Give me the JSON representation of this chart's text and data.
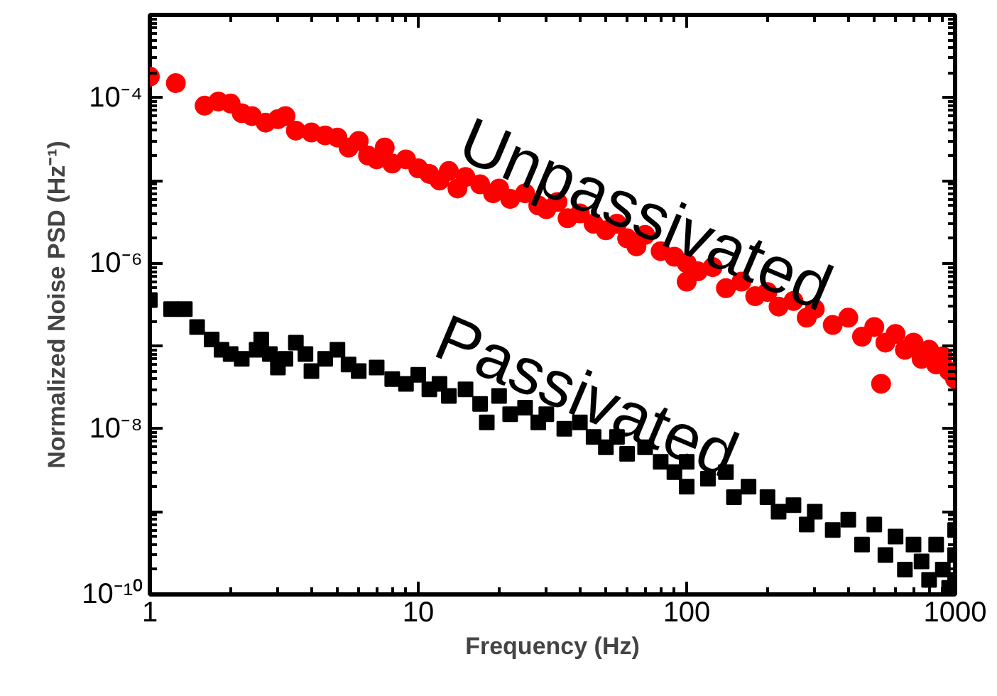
{
  "chart_data": {
    "type": "scatter",
    "xlabel": "Frequency (Hz)",
    "ylabel": "Normalized Noise PSD (Hz⁻¹)",
    "log": "xy",
    "grid": false,
    "xlim": [
      1,
      1000
    ],
    "ylim": [
      1e-10,
      0.001
    ],
    "xticks": [
      1,
      10,
      100,
      1000
    ],
    "yticks": [
      {
        "value": 1e-10,
        "label": "10⁻¹⁰"
      },
      {
        "value": 1e-09,
        "label": null
      },
      {
        "value": 1e-08,
        "label": "10⁻⁸"
      },
      {
        "value": 1e-07,
        "label": null
      },
      {
        "value": 1e-06,
        "label": "10⁻⁶"
      },
      {
        "value": 1e-05,
        "label": null
      },
      {
        "value": 0.0001,
        "label": "10⁻⁴"
      },
      {
        "value": 0.001,
        "label": null
      }
    ],
    "series": [
      {
        "color": "#ff0000",
        "marker": "circle",
        "x": [
          1,
          1.25,
          1.6,
          1.8,
          2,
          2.2,
          2.4,
          2.7,
          3,
          3.2,
          3.5,
          4,
          4.5,
          5,
          5.5,
          6,
          6.5,
          7,
          7.5,
          8,
          9,
          10,
          11,
          12,
          13,
          14,
          15,
          17,
          19,
          20,
          22,
          25,
          28,
          30,
          33,
          36,
          40,
          45,
          50,
          55,
          60,
          65,
          70,
          80,
          90,
          100,
          100,
          110,
          125,
          140,
          160,
          180,
          200,
          220,
          250,
          280,
          300,
          350,
          400,
          450,
          500,
          530,
          550,
          600,
          650,
          700,
          750,
          800,
          850,
          900,
          950,
          1000
        ],
        "values": [
          0.00018,
          0.00015,
          8e-05,
          9e-05,
          8.5e-05,
          6.5e-05,
          6e-05,
          5e-05,
          5.5e-05,
          6e-05,
          4e-05,
          3.8e-05,
          3.5e-05,
          3.3e-05,
          2.5e-05,
          3e-05,
          2e-05,
          1.8e-05,
          2.5e-05,
          1.6e-05,
          1.8e-05,
          1.4e-05,
          1.2e-05,
          1e-05,
          1.3e-05,
          8e-06,
          1.1e-05,
          9e-06,
          7e-06,
          8e-06,
          6e-06,
          7e-06,
          5e-06,
          4.5e-06,
          5.5e-06,
          3.5e-06,
          4e-06,
          3e-06,
          2.5e-06,
          3e-06,
          2e-06,
          1.6e-06,
          2.2e-06,
          1.4e-06,
          1.2e-06,
          1e-06,
          6e-07,
          8e-07,
          9e-07,
          5e-07,
          6e-07,
          4e-07,
          4.5e-07,
          3e-07,
          3.5e-07,
          2.2e-07,
          2.8e-07,
          1.8e-07,
          2.2e-07,
          1.3e-07,
          1.7e-07,
          3.5e-08,
          1.1e-07,
          1.4e-07,
          9e-08,
          1.1e-07,
          7e-08,
          9e-08,
          6e-08,
          7.5e-08,
          5e-08,
          4e-08
        ]
      },
      {
        "color": "#000000",
        "marker": "square",
        "x": [
          1,
          1.2,
          1.35,
          1.5,
          1.7,
          1.85,
          2,
          2.2,
          2.5,
          2.6,
          2.8,
          3,
          3.2,
          3.5,
          3.8,
          4,
          4.5,
          5,
          5.5,
          6,
          7,
          8,
          9,
          10,
          11,
          12,
          13,
          15,
          17,
          18,
          20,
          22,
          25,
          28,
          30,
          35,
          40,
          45,
          50,
          55,
          60,
          70,
          80,
          90,
          100,
          100,
          120,
          140,
          150,
          170,
          200,
          220,
          250,
          280,
          300,
          350,
          400,
          450,
          500,
          550,
          600,
          650,
          700,
          750,
          800,
          850,
          900,
          950,
          1000,
          1000,
          1000
        ],
        "values": [
          3.6e-07,
          2.8e-07,
          2.8e-07,
          1.7e-07,
          1.2e-07,
          9e-08,
          8e-08,
          7e-08,
          9e-08,
          1.2e-07,
          8e-08,
          5.5e-08,
          7e-08,
          1.1e-07,
          8e-08,
          5e-08,
          7e-08,
          9e-08,
          6e-08,
          5e-08,
          5.5e-08,
          4e-08,
          3.5e-08,
          4.5e-08,
          3e-08,
          3.5e-08,
          2.5e-08,
          3e-08,
          2e-08,
          1.2e-08,
          2.5e-08,
          1.5e-08,
          1.8e-08,
          1.2e-08,
          1.5e-08,
          1e-08,
          1.2e-08,
          8e-09,
          6e-09,
          8e-09,
          5e-09,
          6e-09,
          4e-09,
          3e-09,
          4e-09,
          2e-09,
          2.5e-09,
          3e-09,
          1.5e-09,
          2e-09,
          1.5e-09,
          1e-09,
          1.2e-09,
          7e-10,
          1e-09,
          6e-10,
          8e-10,
          4e-10,
          7e-10,
          3e-10,
          5e-10,
          2e-10,
          4e-10,
          2.5e-10,
          1.5e-10,
          4e-10,
          2e-10,
          1.2e-10,
          3e-10,
          1.5e-10,
          6e-10
        ]
      }
    ],
    "annotations": [
      "Unpassivated",
      "Passivated"
    ]
  }
}
